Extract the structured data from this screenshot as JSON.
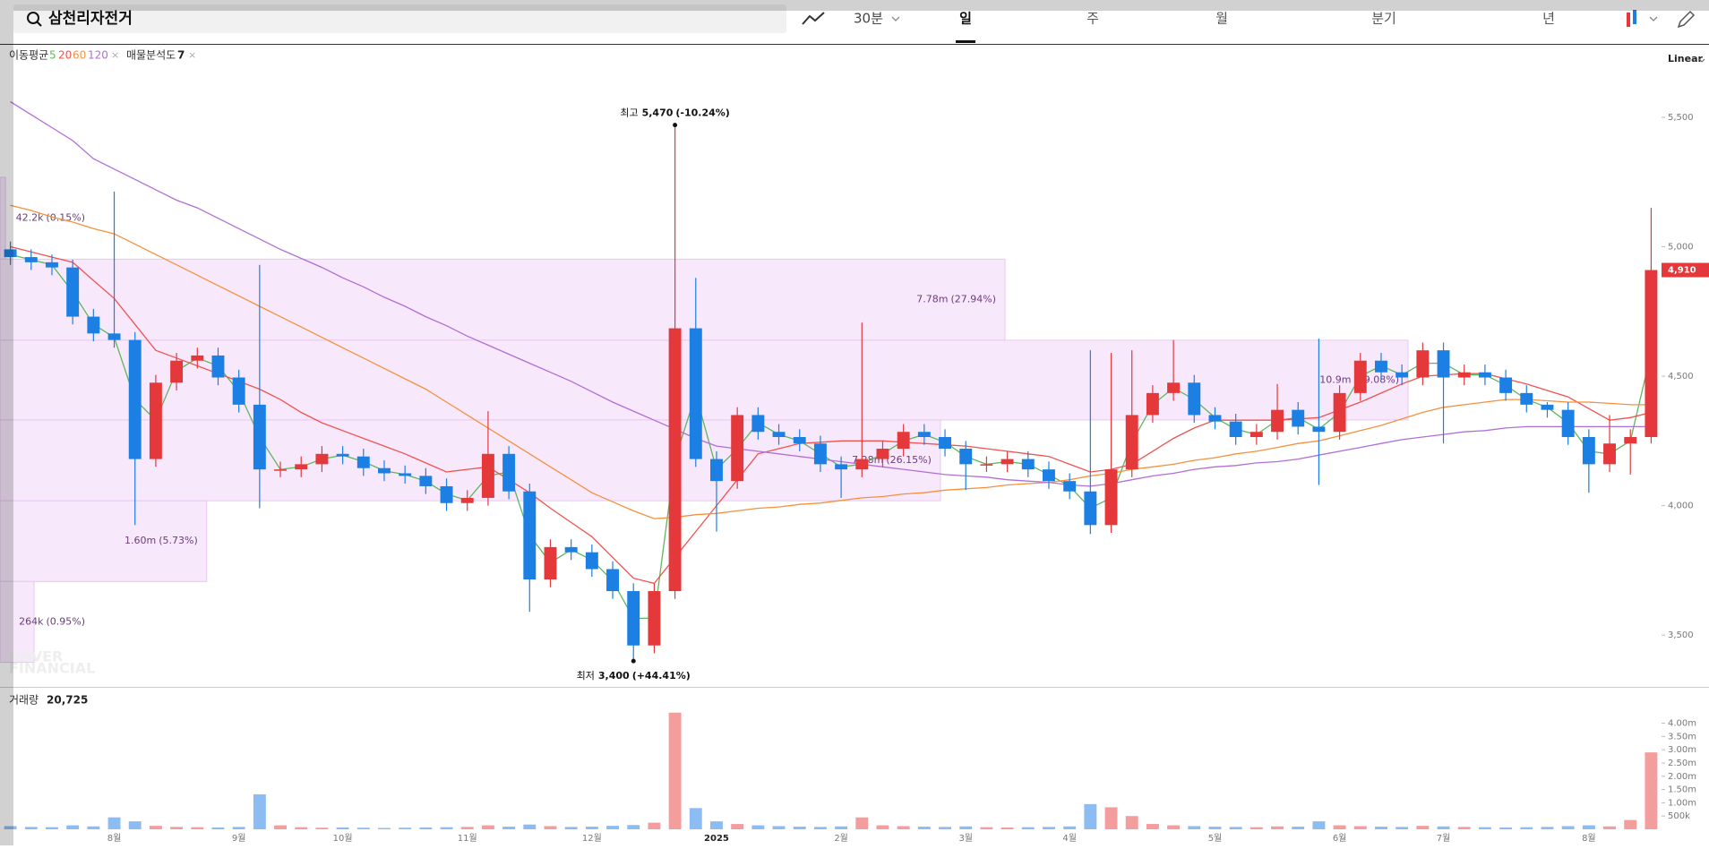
{
  "header": {
    "search_text": "삼천리자전거",
    "interval": "30분",
    "tabs": [
      "일",
      "주",
      "월",
      "분기",
      "년"
    ],
    "active_tab": 0
  },
  "indicators": {
    "ma_label": "이동평균",
    "profile_label": "매물분석도",
    "profile_count": 7
  },
  "scale_mode": "Linear",
  "watermark": [
    "NAVER",
    "FINANCIAL"
  ],
  "chart_data": [
    {
      "type": "candlestick",
      "categories": [
        null,
        null,
        null,
        null,
        null,
        "8월",
        null,
        null,
        null,
        null,
        null,
        "9월",
        null,
        null,
        null,
        null,
        "10월",
        null,
        null,
        null,
        null,
        null,
        "11월",
        null,
        null,
        null,
        null,
        null,
        "12월",
        null,
        null,
        null,
        null,
        null,
        "2025",
        null,
        null,
        null,
        null,
        null,
        "2월",
        null,
        null,
        null,
        null,
        null,
        "3월",
        null,
        null,
        null,
        null,
        "4월",
        null,
        null,
        null,
        null,
        null,
        null,
        "5월",
        null,
        null,
        null,
        null,
        null,
        "6월",
        null,
        null,
        null,
        null,
        "7월",
        null,
        null,
        null,
        null,
        null,
        null,
        "8월",
        null,
        null,
        null
      ],
      "open": [
        4990,
        4960,
        4940,
        4920,
        4730,
        4665,
        4640,
        4180,
        4475,
        4560,
        4580,
        4495,
        4390,
        4140,
        4140,
        4160,
        4200,
        4190,
        4145,
        4125,
        4115,
        4075,
        4010,
        4030,
        4200,
        4055,
        3715,
        3840,
        3820,
        3755,
        3670,
        3460,
        3670,
        4685,
        4180,
        4095,
        4350,
        4285,
        4265,
        4240,
        4160,
        4140,
        4180,
        4220,
        4285,
        4265,
        4220,
        4160,
        4160,
        4180,
        4140,
        4095,
        4055,
        3925,
        4140,
        4350,
        4435,
        4475,
        4350,
        4325,
        4265,
        4285,
        4370,
        4305,
        4285,
        4435,
        4560,
        4515,
        4495,
        4600,
        4495,
        4515,
        4495,
        4435,
        4390,
        4370,
        4265,
        4160,
        4240,
        4265
      ],
      "high": [
        5020,
        4990,
        4970,
        4950,
        4760,
        5213,
        4670,
        4505,
        4590,
        4610,
        4610,
        4525,
        4930,
        4170,
        4190,
        4230,
        4230,
        4220,
        4175,
        4155,
        4145,
        4105,
        4060,
        4365,
        4230,
        4085,
        3870,
        3870,
        3850,
        3785,
        3700,
        3700,
        5470,
        4880,
        4210,
        4380,
        4380,
        4315,
        4295,
        4270,
        4190,
        4707,
        4250,
        4315,
        4315,
        4295,
        4250,
        4190,
        4210,
        4210,
        4170,
        4125,
        4600,
        4590,
        4600,
        4465,
        4640,
        4505,
        4380,
        4355,
        4315,
        4470,
        4400,
        4645,
        4465,
        4590,
        4590,
        4545,
        4630,
        4630,
        4545,
        4545,
        4525,
        4465,
        4400,
        4400,
        4295,
        4350,
        4295,
        5150
      ],
      "low": [
        4930,
        4910,
        4890,
        4700,
        4635,
        4610,
        3925,
        4150,
        4445,
        4530,
        4465,
        4360,
        3990,
        4110,
        4110,
        4130,
        4160,
        4115,
        4095,
        4085,
        4045,
        3980,
        3980,
        4000,
        4025,
        3590,
        3685,
        3790,
        3725,
        3640,
        3400,
        3430,
        3640,
        4150,
        3900,
        4065,
        4255,
        4235,
        4210,
        4130,
        4030,
        4110,
        4150,
        4190,
        4235,
        4190,
        4060,
        4130,
        4130,
        4110,
        4065,
        4025,
        3890,
        3895,
        4110,
        4320,
        4405,
        4320,
        4295,
        4235,
        4235,
        4255,
        4275,
        4080,
        4255,
        4405,
        4485,
        4465,
        4465,
        4240,
        4465,
        4465,
        4405,
        4360,
        4340,
        4235,
        4050,
        4130,
        4120,
        4240
      ],
      "close": [
        4960,
        4940,
        4920,
        4730,
        4665,
        4640,
        4180,
        4475,
        4560,
        4580,
        4495,
        4390,
        4140,
        4140,
        4160,
        4200,
        4190,
        4145,
        4125,
        4115,
        4075,
        4010,
        4030,
        4200,
        4055,
        3715,
        3840,
        3820,
        3755,
        3670,
        3460,
        3670,
        4685,
        4180,
        4095,
        4350,
        4285,
        4265,
        4240,
        4160,
        4140,
        4180,
        4220,
        4285,
        4265,
        4220,
        4160,
        4160,
        4180,
        4140,
        4095,
        4055,
        3925,
        4140,
        4350,
        4435,
        4475,
        4350,
        4325,
        4265,
        4285,
        4370,
        4305,
        4285,
        4435,
        4560,
        4515,
        4495,
        4600,
        4495,
        4515,
        4495,
        4435,
        4390,
        4370,
        4265,
        4160,
        4240,
        4265,
        4910
      ],
      "up_color": "#e5383b",
      "down_color": "#1b7fe3",
      "ylim": [
        3300,
        5780
      ],
      "yticks": [
        {
          "value": 3500,
          "label": "3,500"
        },
        {
          "value": 4000,
          "label": "4,000"
        },
        {
          "value": 4500,
          "label": "4,500"
        },
        {
          "value": 5000,
          "label": "5,000"
        },
        {
          "value": 5500,
          "label": "5,500"
        }
      ],
      "series": [
        {
          "name": "5",
          "color": "#5cb85c",
          "values": [
            4970,
            4950,
            4930,
            4825,
            4700,
            4650,
            4410,
            4330,
            4520,
            4570,
            4540,
            4440,
            4265,
            4140,
            4150,
            4180,
            4195,
            4170,
            4135,
            4120,
            4095,
            4045,
            4020,
            4115,
            4130,
            3885,
            3780,
            3830,
            3790,
            3710,
            3565,
            3565,
            4180,
            4430,
            4140,
            4220,
            4320,
            4275,
            4250,
            4200,
            4150,
            4160,
            4200,
            4250,
            4275,
            4245,
            4190,
            4160,
            4170,
            4160,
            4120,
            4075,
            3990,
            4030,
            4245,
            4390,
            4455,
            4410,
            4340,
            4295,
            4275,
            4330,
            4340,
            4295,
            4360,
            4500,
            4540,
            4505,
            4550,
            4550,
            4505,
            4505,
            4465,
            4410,
            4380,
            4320,
            4210,
            4200,
            4250,
            4590
          ]
        },
        {
          "name": "20",
          "color": "#ef5350",
          "values": [
            5000,
            4980,
            4960,
            4940,
            4870,
            4800,
            4700,
            4600,
            4570,
            4540,
            4510,
            4480,
            4450,
            4410,
            4360,
            4320,
            4290,
            4260,
            4230,
            4200,
            4165,
            4130,
            4140,
            4150,
            4100,
            4050,
            3990,
            3935,
            3880,
            3800,
            3720,
            3700,
            3800,
            3900,
            4000,
            4100,
            4200,
            4220,
            4240,
            4245,
            4250,
            4250,
            4250,
            4245,
            4240,
            4235,
            4230,
            4220,
            4210,
            4200,
            4190,
            4160,
            4130,
            4140,
            4160,
            4210,
            4260,
            4300,
            4330,
            4330,
            4330,
            4330,
            4335,
            4340,
            4370,
            4400,
            4435,
            4470,
            4500,
            4505,
            4510,
            4510,
            4490,
            4470,
            4445,
            4420,
            4375,
            4330,
            4340,
            4360
          ]
        },
        {
          "name": "60",
          "color": "#f5913e",
          "values": [
            5160,
            5140,
            5115,
            5095,
            5070,
            5050,
            5010,
            4970,
            4930,
            4890,
            4850,
            4810,
            4770,
            4730,
            4690,
            4650,
            4610,
            4570,
            4530,
            4490,
            4450,
            4400,
            4350,
            4300,
            4250,
            4200,
            4150,
            4100,
            4050,
            4015,
            3980,
            3950,
            3955,
            3965,
            3970,
            3980,
            3990,
            3995,
            4005,
            4010,
            4020,
            4030,
            4035,
            4045,
            4050,
            4060,
            4065,
            4070,
            4080,
            4085,
            4090,
            4100,
            4115,
            4125,
            4140,
            4150,
            4160,
            4175,
            4185,
            4200,
            4210,
            4225,
            4240,
            4250,
            4270,
            4290,
            4310,
            4335,
            4360,
            4380,
            4390,
            4400,
            4410,
            4410,
            4405,
            4400,
            4400,
            4395,
            4390,
            4390
          ]
        },
        {
          "name": "120",
          "color": "#b06fd6",
          "values": [
            5560,
            5510,
            5460,
            5410,
            5340,
            5300,
            5260,
            5220,
            5180,
            5150,
            5110,
            5070,
            5030,
            4990,
            4955,
            4920,
            4880,
            4845,
            4805,
            4770,
            4730,
            4695,
            4655,
            4620,
            4585,
            4550,
            4515,
            4480,
            4440,
            4400,
            4365,
            4330,
            4295,
            4260,
            4230,
            4220,
            4210,
            4200,
            4190,
            4180,
            4170,
            4160,
            4150,
            4140,
            4130,
            4120,
            4115,
            4110,
            4100,
            4095,
            4090,
            4080,
            4075,
            4085,
            4100,
            4115,
            4125,
            4140,
            4150,
            4155,
            4165,
            4170,
            4180,
            4195,
            4210,
            4225,
            4240,
            4255,
            4265,
            4275,
            4285,
            4290,
            4300,
            4305,
            4305,
            4305,
            4305,
            4305,
            4305,
            4305
          ]
        }
      ],
      "high_annotation": {
        "prefix": "최고",
        "label": "5,470",
        "change": "(-10.24%)"
      },
      "low_annotation": {
        "prefix": "최저",
        "label": "3,400",
        "change": "(+44.41%)"
      },
      "last_price": {
        "value": 4910,
        "label": "4,910"
      },
      "volume_profile": {
        "color": "#f8e8fc",
        "border": "#e8c8f0",
        "text_color": "#6a3d7a",
        "bands": [
          {
            "low": 4952,
            "high": 5268,
            "value": 42200,
            "label": "42.2k",
            "share": "(0.15%)"
          },
          {
            "low": 4639,
            "high": 4952,
            "value": 7780000,
            "label": "7.78m",
            "share": "(27.94%)"
          },
          {
            "low": 4331,
            "high": 4639,
            "value": 10900000,
            "label": "10.9m",
            "share": "(39.08%)"
          },
          {
            "low": 4019,
            "high": 4331,
            "value": 7280000,
            "label": "7.28m",
            "share": "(26.15%)"
          },
          {
            "low": 3707,
            "high": 4019,
            "value": 1600000,
            "label": "1.60m",
            "share": "(5.73%)"
          },
          {
            "low": 3395,
            "high": 3707,
            "value": 264000,
            "label": "264k",
            "share": "(0.95%)"
          }
        ]
      }
    },
    {
      "type": "bar",
      "title": "거래량",
      "current": "20,725",
      "values": [
        120000,
        90000,
        80000,
        150000,
        110000,
        450000,
        300000,
        130000,
        90000,
        80000,
        70000,
        90000,
        1320000,
        150000,
        80000,
        60000,
        70000,
        60000,
        50000,
        60000,
        70000,
        80000,
        90000,
        150000,
        100000,
        180000,
        120000,
        90000,
        100000,
        130000,
        160000,
        250000,
        4400000,
        800000,
        300000,
        200000,
        150000,
        120000,
        100000,
        90000,
        110000,
        450000,
        150000,
        120000,
        100000,
        90000,
        110000,
        80000,
        70000,
        80000,
        90000,
        110000,
        950000,
        830000,
        500000,
        200000,
        150000,
        120000,
        100000,
        90000,
        80000,
        110000,
        100000,
        300000,
        150000,
        120000,
        100000,
        90000,
        130000,
        110000,
        90000,
        80000,
        70000,
        80000,
        90000,
        120000,
        150000,
        110000,
        350000,
        2900000
      ],
      "up_color": "#f49d9d",
      "down_color": "#8dbcf3",
      "ylim": [
        0,
        5100000
      ],
      "yticks": [
        {
          "value": 500000,
          "label": "500k"
        },
        {
          "value": 1000000,
          "label": "1.00m"
        },
        {
          "value": 1500000,
          "label": "1.50m"
        },
        {
          "value": 2000000,
          "label": "2.00m"
        },
        {
          "value": 2500000,
          "label": "2.50m"
        },
        {
          "value": 3000000,
          "label": "3.00m"
        },
        {
          "value": 3500000,
          "label": "3.50m"
        },
        {
          "value": 4000000,
          "label": "4.00m"
        }
      ]
    }
  ]
}
